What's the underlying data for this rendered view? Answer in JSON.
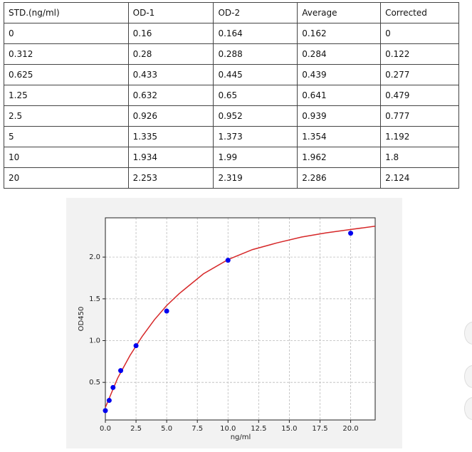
{
  "table": {
    "headers": [
      "STD.(ng/ml)",
      "OD-1",
      "OD-2",
      "Average",
      "Corrected"
    ],
    "rows": [
      [
        "0",
        "0.16",
        "0.164",
        "0.162",
        "0"
      ],
      [
        "0.312",
        "0.28",
        "0.288",
        "0.284",
        "0.122"
      ],
      [
        "0.625",
        "0.433",
        "0.445",
        "0.439",
        "0.277"
      ],
      [
        "1.25",
        "0.632",
        "0.65",
        "0.641",
        "0.479"
      ],
      [
        "2.5",
        "0.926",
        "0.952",
        "0.939",
        "0.777"
      ],
      [
        "5",
        "1.335",
        "1.373",
        "1.354",
        "1.192"
      ],
      [
        "10",
        "1.934",
        "1.99",
        "1.962",
        "1.8"
      ],
      [
        "20",
        "2.253",
        "2.319",
        "2.286",
        "2.124"
      ]
    ]
  },
  "chart_data": {
    "type": "scatter",
    "xlabel": "ng/ml",
    "ylabel": "OD450",
    "xlim": [
      0,
      22
    ],
    "ylim": [
      0.05,
      2.47
    ],
    "xticks": [
      {
        "value": 0,
        "label": "0.0"
      },
      {
        "value": 2.5,
        "label": "2.5"
      },
      {
        "value": 5,
        "label": "5.0"
      },
      {
        "value": 7.5,
        "label": "7.5"
      },
      {
        "value": 10,
        "label": "10.0"
      },
      {
        "value": 12.5,
        "label": "12.5"
      },
      {
        "value": 15,
        "label": "15.0"
      },
      {
        "value": 17.5,
        "label": "17.5"
      },
      {
        "value": 20,
        "label": "20.0"
      }
    ],
    "yticks": [
      {
        "value": 0.5,
        "label": "0.5"
      },
      {
        "value": 1,
        "label": "1.0"
      },
      {
        "value": 1.5,
        "label": "1.5"
      },
      {
        "value": 2,
        "label": "2.0"
      }
    ],
    "grid": true,
    "series": [
      {
        "mode": "markers",
        "color": "#0000ee",
        "x": [
          0,
          0.312,
          0.625,
          1.25,
          2.5,
          5,
          10,
          20
        ],
        "values": [
          0.162,
          0.284,
          0.439,
          0.641,
          0.939,
          1.354,
          1.962,
          2.286
        ]
      },
      {
        "mode": "line",
        "color": "#d62728",
        "x": [
          0,
          1,
          2,
          3,
          4,
          5,
          6,
          8,
          10,
          12,
          14,
          16,
          18,
          20,
          22
        ],
        "values": [
          0.2,
          0.55,
          0.82,
          1.05,
          1.25,
          1.42,
          1.56,
          1.8,
          1.97,
          2.09,
          2.17,
          2.24,
          2.29,
          2.33,
          2.37
        ]
      }
    ]
  }
}
